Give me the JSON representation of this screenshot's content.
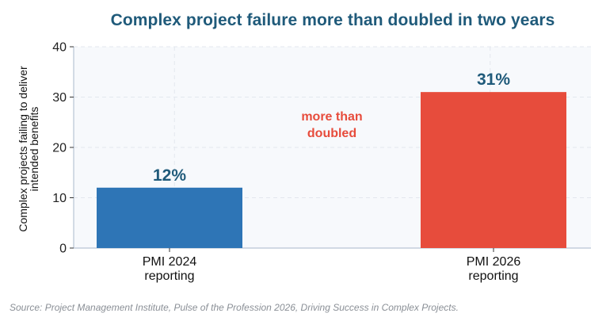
{
  "chart_data": {
    "type": "bar",
    "title": "Complex project failure more than doubled in two years",
    "categories": [
      [
        "PMI 2024",
        "reporting"
      ],
      [
        "PMI 2026",
        "reporting"
      ]
    ],
    "values": [
      12,
      31
    ],
    "data_labels": [
      "12%",
      "31%"
    ],
    "bar_colors": [
      "#2e75b6",
      "#e74c3c"
    ],
    "ylabel": [
      "Complex projects failing to deliver",
      "intended benefits"
    ],
    "xlabel": "",
    "ylim": [
      0,
      40
    ],
    "yticks": [
      0,
      10,
      20,
      30,
      40
    ],
    "grid": true,
    "annotation": [
      "more than",
      "doubled"
    ],
    "annotation_color": "#e74c3c"
  },
  "source": "Source: Project Management Institute, Pulse of the Profession 2026, Driving Success in Complex Projects."
}
